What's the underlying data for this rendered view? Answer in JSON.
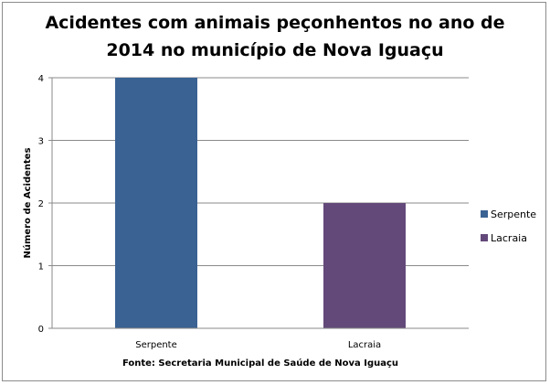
{
  "chart_data": {
    "type": "bar",
    "title_line1": "Acidentes com animais peçonhentos no ano de",
    "title_line2": "2014 no município de Nova Iguaçu",
    "categories": [
      "Serpente",
      "Lacraia"
    ],
    "values": [
      4,
      2
    ],
    "colors": [
      "#3a6293",
      "#63497a"
    ],
    "ylabel": "Número de Acidentes",
    "xlabel": "Fonte: Secretaria Municipal  de Saúde de Nova Iguaçu",
    "ylim": [
      0,
      4
    ],
    "yticks": [
      "0",
      "1",
      "2",
      "3",
      "4"
    ],
    "grid": true,
    "legend_position": "right",
    "legend": [
      "Serpente",
      "Lacraia"
    ]
  }
}
